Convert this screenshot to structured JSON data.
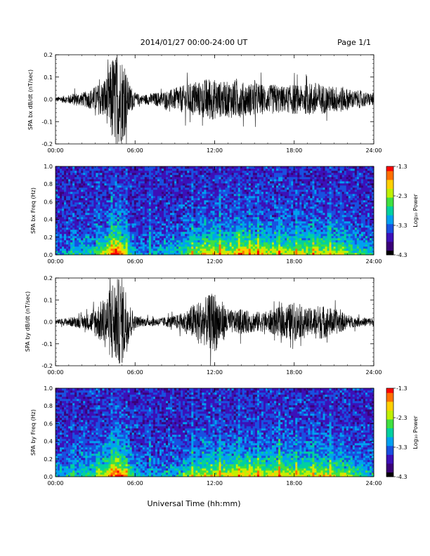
{
  "header": {
    "title": "2014/01/27  00:00-24:00 UT",
    "page": "Page 1/1"
  },
  "footer": {
    "xlabel": "Universal Time (hh:mm)"
  },
  "colors": {
    "trace": "#000000",
    "colormap": [
      "#000000",
      "#3a0078",
      "#3c10b8",
      "#1850e0",
      "#00a0f0",
      "#00d0a0",
      "#40e040",
      "#c0f000",
      "#ffd000",
      "#ff7000",
      "#ff0000"
    ]
  },
  "chart_data": [
    {
      "type": "line",
      "ylabel": "SPA bx dB/dt (nT/sec)",
      "xlim": [
        0,
        24
      ],
      "ylim": [
        -0.2,
        0.2
      ],
      "xticks": [
        "00:00",
        "06:00",
        "12:00",
        "18:00",
        "24:00"
      ],
      "yticks": [
        "-0.2",
        "-0.1",
        "0.0",
        "0.1",
        "0.2"
      ],
      "ytick_values": [
        -0.2,
        -0.1,
        0.0,
        0.1,
        0.2
      ],
      "series": [
        {
          "x": [
            0,
            0.5,
            1,
            1.5,
            2,
            2.5,
            3,
            3.5,
            4,
            4.25,
            4.5,
            4.75,
            5,
            5.25,
            5.5,
            6,
            6.5,
            7,
            7.5,
            8,
            8.5,
            9,
            9.5,
            10,
            10.5,
            11,
            11.5,
            12,
            12.5,
            13,
            13.5,
            14,
            14.5,
            15,
            15.5,
            16,
            16.5,
            17,
            17.5,
            18,
            18.5,
            19,
            19.5,
            20,
            20.5,
            21,
            21.5,
            22,
            22.5,
            23,
            23.5,
            24
          ],
          "envelope": [
            0.01,
            0.015,
            0.02,
            0.03,
            0.03,
            0.04,
            0.06,
            0.08,
            0.12,
            0.2,
            0.2,
            0.2,
            0.2,
            0.16,
            0.08,
            0.03,
            0.02,
            0.025,
            0.03,
            0.035,
            0.04,
            0.05,
            0.06,
            0.07,
            0.08,
            0.08,
            0.1,
            0.09,
            0.08,
            0.08,
            0.09,
            0.08,
            0.07,
            0.08,
            0.07,
            0.06,
            0.07,
            0.06,
            0.06,
            0.07,
            0.06,
            0.07,
            0.08,
            0.07,
            0.06,
            0.06,
            0.06,
            0.05,
            0.04,
            0.04,
            0.03,
            0.03
          ]
        }
      ]
    },
    {
      "type": "heatmap",
      "ylabel": "SPA bx Freq (Hz)",
      "xlim": [
        0,
        24
      ],
      "ylim": [
        0.0,
        1.0
      ],
      "xticks": [
        "00:00",
        "06:00",
        "12:00",
        "18:00",
        "24:00"
      ],
      "yticks": [
        "0.0",
        "0.2",
        "0.4",
        "0.6",
        "0.8",
        "1.0"
      ],
      "ytick_values": [
        0.0,
        0.2,
        0.4,
        0.6,
        0.8,
        1.0
      ],
      "colorbar": {
        "label": "Log₁₀ Power",
        "range": [
          -4.3,
          -1.3
        ],
        "ticks": [
          "-1.3",
          "-2.3",
          "-3.3",
          "-4.3"
        ],
        "tick_values": [
          -1.3,
          -2.3,
          -3.3,
          -4.3
        ]
      },
      "activity": {
        "x": [
          0,
          1,
          2,
          3,
          4,
          4.5,
          5,
          5.5,
          6,
          7,
          8,
          9,
          10,
          11,
          12,
          13,
          14,
          15,
          16,
          17,
          18,
          19,
          20,
          21,
          22,
          23,
          24
        ],
        "level": [
          0.15,
          0.2,
          0.25,
          0.3,
          0.55,
          0.7,
          0.6,
          0.4,
          0.2,
          0.15,
          0.2,
          0.25,
          0.35,
          0.45,
          0.55,
          0.5,
          0.6,
          0.55,
          0.5,
          0.5,
          0.45,
          0.5,
          0.5,
          0.45,
          0.4,
          0.3,
          0.25
        ]
      }
    },
    {
      "type": "line",
      "ylabel": "SPA by dB/dt (nT/sec)",
      "xlim": [
        0,
        24
      ],
      "ylim": [
        -0.2,
        0.2
      ],
      "xticks": [
        "00:00",
        "06:00",
        "12:00",
        "18:00",
        "24:00"
      ],
      "yticks": [
        "-0.2",
        "-0.1",
        "0.0",
        "0.1",
        "0.2"
      ],
      "ytick_values": [
        -0.2,
        -0.1,
        0.0,
        0.1,
        0.2
      ],
      "series": [
        {
          "x": [
            0,
            0.5,
            1,
            1.5,
            2,
            2.5,
            3,
            3.5,
            4,
            4.25,
            4.5,
            4.75,
            5,
            5.25,
            5.5,
            6,
            6.5,
            7,
            7.5,
            8,
            8.5,
            9,
            9.5,
            10,
            10.5,
            11,
            11.5,
            12,
            12.5,
            13,
            13.5,
            14,
            14.5,
            15,
            15.5,
            16,
            16.5,
            17,
            17.5,
            18,
            18.5,
            19,
            19.5,
            20,
            20.5,
            21,
            21.5,
            22,
            22.5,
            23,
            23.5,
            24
          ],
          "envelope": [
            0.01,
            0.015,
            0.02,
            0.025,
            0.03,
            0.04,
            0.07,
            0.1,
            0.14,
            0.2,
            0.2,
            0.2,
            0.2,
            0.18,
            0.1,
            0.03,
            0.02,
            0.02,
            0.02,
            0.02,
            0.025,
            0.03,
            0.04,
            0.06,
            0.09,
            0.1,
            0.12,
            0.14,
            0.1,
            0.06,
            0.05,
            0.06,
            0.05,
            0.05,
            0.045,
            0.05,
            0.06,
            0.07,
            0.08,
            0.09,
            0.07,
            0.06,
            0.07,
            0.08,
            0.07,
            0.06,
            0.05,
            0.03,
            0.025,
            0.02,
            0.02,
            0.02
          ]
        }
      ]
    },
    {
      "type": "heatmap",
      "ylabel": "SPA by Freq (Hz)",
      "xlim": [
        0,
        24
      ],
      "ylim": [
        0.0,
        1.0
      ],
      "xticks": [
        "00:00",
        "06:00",
        "12:00",
        "18:00",
        "24:00"
      ],
      "yticks": [
        "0.0",
        "0.2",
        "0.4",
        "0.6",
        "0.8",
        "1.0"
      ],
      "ytick_values": [
        0.0,
        0.2,
        0.4,
        0.6,
        0.8,
        1.0
      ],
      "colorbar": {
        "label": "Log₁₀ Power",
        "range": [
          -4.3,
          -1.3
        ],
        "ticks": [
          "-1.3",
          "-2.3",
          "-3.3",
          "-4.3"
        ],
        "tick_values": [
          -1.3,
          -2.3,
          -3.3,
          -4.3
        ]
      },
      "activity": {
        "x": [
          0,
          1,
          2,
          3,
          4,
          4.5,
          5,
          5.5,
          6,
          7,
          8,
          9,
          10,
          11,
          12,
          13,
          14,
          15,
          16,
          17,
          18,
          19,
          20,
          21,
          22,
          23,
          24
        ],
        "level": [
          0.2,
          0.25,
          0.3,
          0.35,
          0.6,
          0.7,
          0.65,
          0.45,
          0.25,
          0.15,
          0.2,
          0.25,
          0.35,
          0.45,
          0.5,
          0.5,
          0.55,
          0.5,
          0.5,
          0.55,
          0.5,
          0.5,
          0.5,
          0.45,
          0.4,
          0.3,
          0.25
        ]
      }
    }
  ]
}
